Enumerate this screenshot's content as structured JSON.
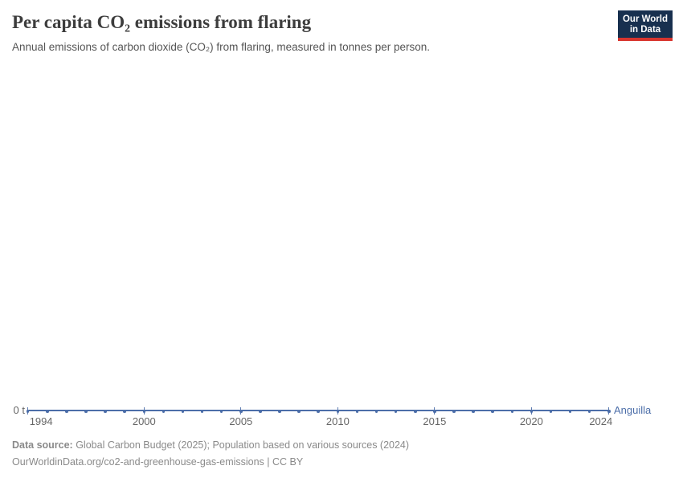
{
  "header": {
    "title": "Per capita CO₂ emissions from flaring",
    "subtitle": "Annual emissions of carbon dioxide (CO₂) from flaring, measured in tonnes per person.",
    "logo": {
      "line1": "Our World",
      "line2": "in Data",
      "bg_color": "#18304f",
      "bar_color": "#d8352e"
    }
  },
  "chart_data": {
    "type": "line",
    "title": "Per capita CO₂ emissions from flaring",
    "entity": "Anguilla",
    "unit": "tonnes per person",
    "x": [
      1994,
      1995,
      1996,
      1997,
      1998,
      1999,
      2000,
      2001,
      2002,
      2003,
      2004,
      2005,
      2006,
      2007,
      2008,
      2009,
      2010,
      2011,
      2012,
      2013,
      2014,
      2015,
      2016,
      2017,
      2018,
      2019,
      2020,
      2021,
      2022,
      2023,
      2024
    ],
    "series": [
      {
        "name": "Anguilla",
        "values": [
          0,
          0,
          0,
          0,
          0,
          0,
          0,
          0,
          0,
          0,
          0,
          0,
          0,
          0,
          0,
          0,
          0,
          0,
          0,
          0,
          0,
          0,
          0,
          0,
          0,
          0,
          0,
          0,
          0,
          0,
          0
        ]
      }
    ],
    "x_ticks": [
      1994,
      2000,
      2005,
      2010,
      2015,
      2020,
      2024
    ],
    "y_ticks": [
      "0 t"
    ],
    "xlim": [
      1994,
      2024
    ],
    "ylim": [
      0,
      0
    ],
    "grid": false,
    "legend_position": "right-of-line",
    "line_color": "#4c6ea9",
    "axis_label_color": "#666666"
  },
  "footer": {
    "source_label": "Data source:",
    "source_text": " Global Carbon Budget (2025); Population based on various sources (2024)",
    "link_line": "OurWorldinData.org/co2-and-greenhouse-gas-emissions | CC BY"
  }
}
